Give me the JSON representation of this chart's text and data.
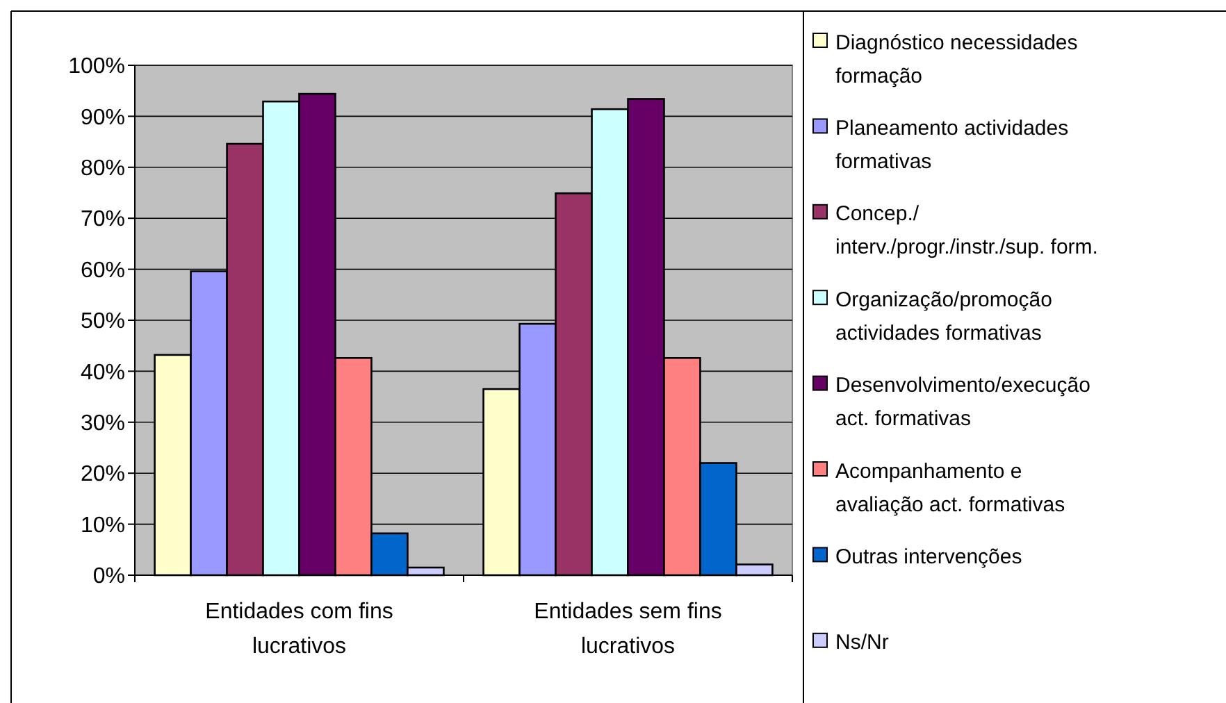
{
  "chart_data": {
    "type": "bar",
    "categories": [
      "Entidades com fins lucrativos",
      "Entidades sem fins lucrativos"
    ],
    "series": [
      {
        "name": "Diagnóstico necessidades formação",
        "color": "#ffffcc",
        "values": [
          43.2,
          36.5
        ]
      },
      {
        "name": "Planeamento actividades formativas",
        "color": "#9999ff",
        "values": [
          59.6,
          49.3
        ]
      },
      {
        "name": "Concep./ interv./progr./instr./sup. form.",
        "color": "#993366",
        "values": [
          84.6,
          74.9
        ]
      },
      {
        "name": "Organização/promoção actividades formativas",
        "color": "#ccffff",
        "values": [
          92.9,
          91.4
        ]
      },
      {
        "name": "Desenvolvimento/execução act. formativas",
        "color": "#660066",
        "values": [
          94.4,
          93.4
        ]
      },
      {
        "name": "Acompanhamento e avaliação act. formativas",
        "color": "#ff8080",
        "values": [
          42.6,
          42.6
        ]
      },
      {
        "name": "Outras intervenções",
        "color": "#0066cc",
        "values": [
          8.2,
          22.0
        ]
      },
      {
        "name": "Ns/Nr",
        "color": "#ccccff",
        "values": [
          1.5,
          2.1
        ]
      }
    ],
    "ylim": [
      0,
      100
    ],
    "yticks": [
      {
        "value": 0,
        "label": "0%"
      },
      {
        "value": 10,
        "label": "10%"
      },
      {
        "value": 20,
        "label": "20%"
      },
      {
        "value": 30,
        "label": "30%"
      },
      {
        "value": 40,
        "label": "40%"
      },
      {
        "value": 50,
        "label": "50%"
      },
      {
        "value": 60,
        "label": "60%"
      },
      {
        "value": 70,
        "label": "70%"
      },
      {
        "value": 80,
        "label": "80%"
      },
      {
        "value": 90,
        "label": "90%"
      },
      {
        "value": 100,
        "label": "100%"
      }
    ],
    "grid": "y",
    "legend": "right"
  }
}
